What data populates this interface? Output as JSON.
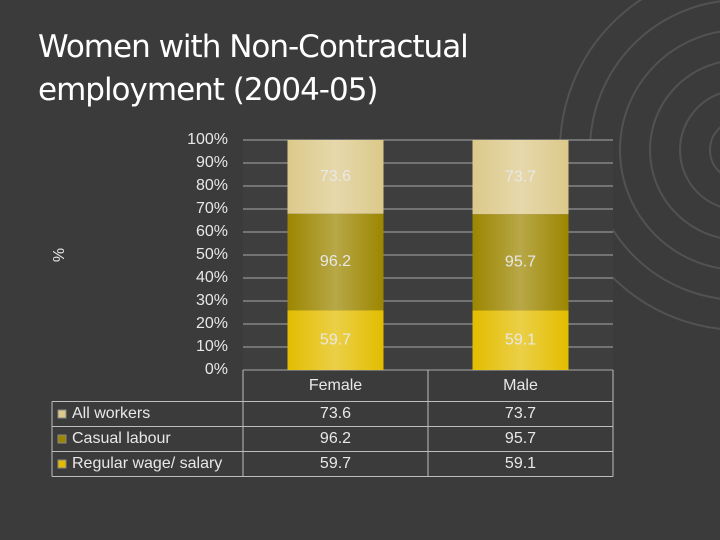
{
  "chart_data": {
    "type": "bar",
    "stacking": "percent",
    "title": "Women with Non-Contractual employment  (2004-05)",
    "y_label": "%",
    "categories": [
      "Female",
      "Male"
    ],
    "series": [
      {
        "name": "Regular wage/ salary",
        "color": "#e3bd00",
        "values": [
          59.7,
          59.1
        ]
      },
      {
        "name": "Casual labour",
        "color": "#9c8600",
        "values": [
          96.2,
          95.7
        ]
      },
      {
        "name": "All workers",
        "color": "#dcc98a",
        "values": [
          73.6,
          73.7
        ]
      }
    ],
    "ylim": [
      0,
      100
    ],
    "yticks": [
      {
        "value": 0,
        "label": "0%"
      },
      {
        "value": 10,
        "label": "10%"
      },
      {
        "value": 20,
        "label": "20%"
      },
      {
        "value": 30,
        "label": "30%"
      },
      {
        "value": 40,
        "label": "40%"
      },
      {
        "value": 50,
        "label": "50%"
      },
      {
        "value": 60,
        "label": "60%"
      },
      {
        "value": 70,
        "label": "70%"
      },
      {
        "value": 80,
        "label": "80%"
      },
      {
        "value": 90,
        "label": "90%"
      },
      {
        "value": 100,
        "label": "100%"
      }
    ],
    "grid": true
  }
}
